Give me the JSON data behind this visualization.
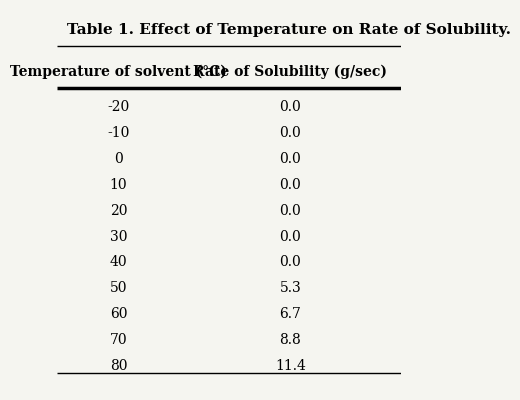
{
  "title": "Table 1. Effect of Temperature on Rate of Solubility.",
  "col1_header": "Temperature of solvent (°C)",
  "col2_header": "Rate of Solubility (g/sec)",
  "temperatures": [
    "-20",
    "-10",
    "0",
    "10",
    "20",
    "30",
    "40",
    "50",
    "60",
    "70",
    "80"
  ],
  "rates": [
    "0.0",
    "0.0",
    "0.0",
    "0.0",
    "0.0",
    "0.0",
    "0.0",
    "5.3",
    "6.7",
    "8.8",
    "11.4"
  ],
  "background_color": "#f5f5f0",
  "text_color": "#000000",
  "title_fontsize": 11,
  "header_fontsize": 10,
  "data_fontsize": 10
}
